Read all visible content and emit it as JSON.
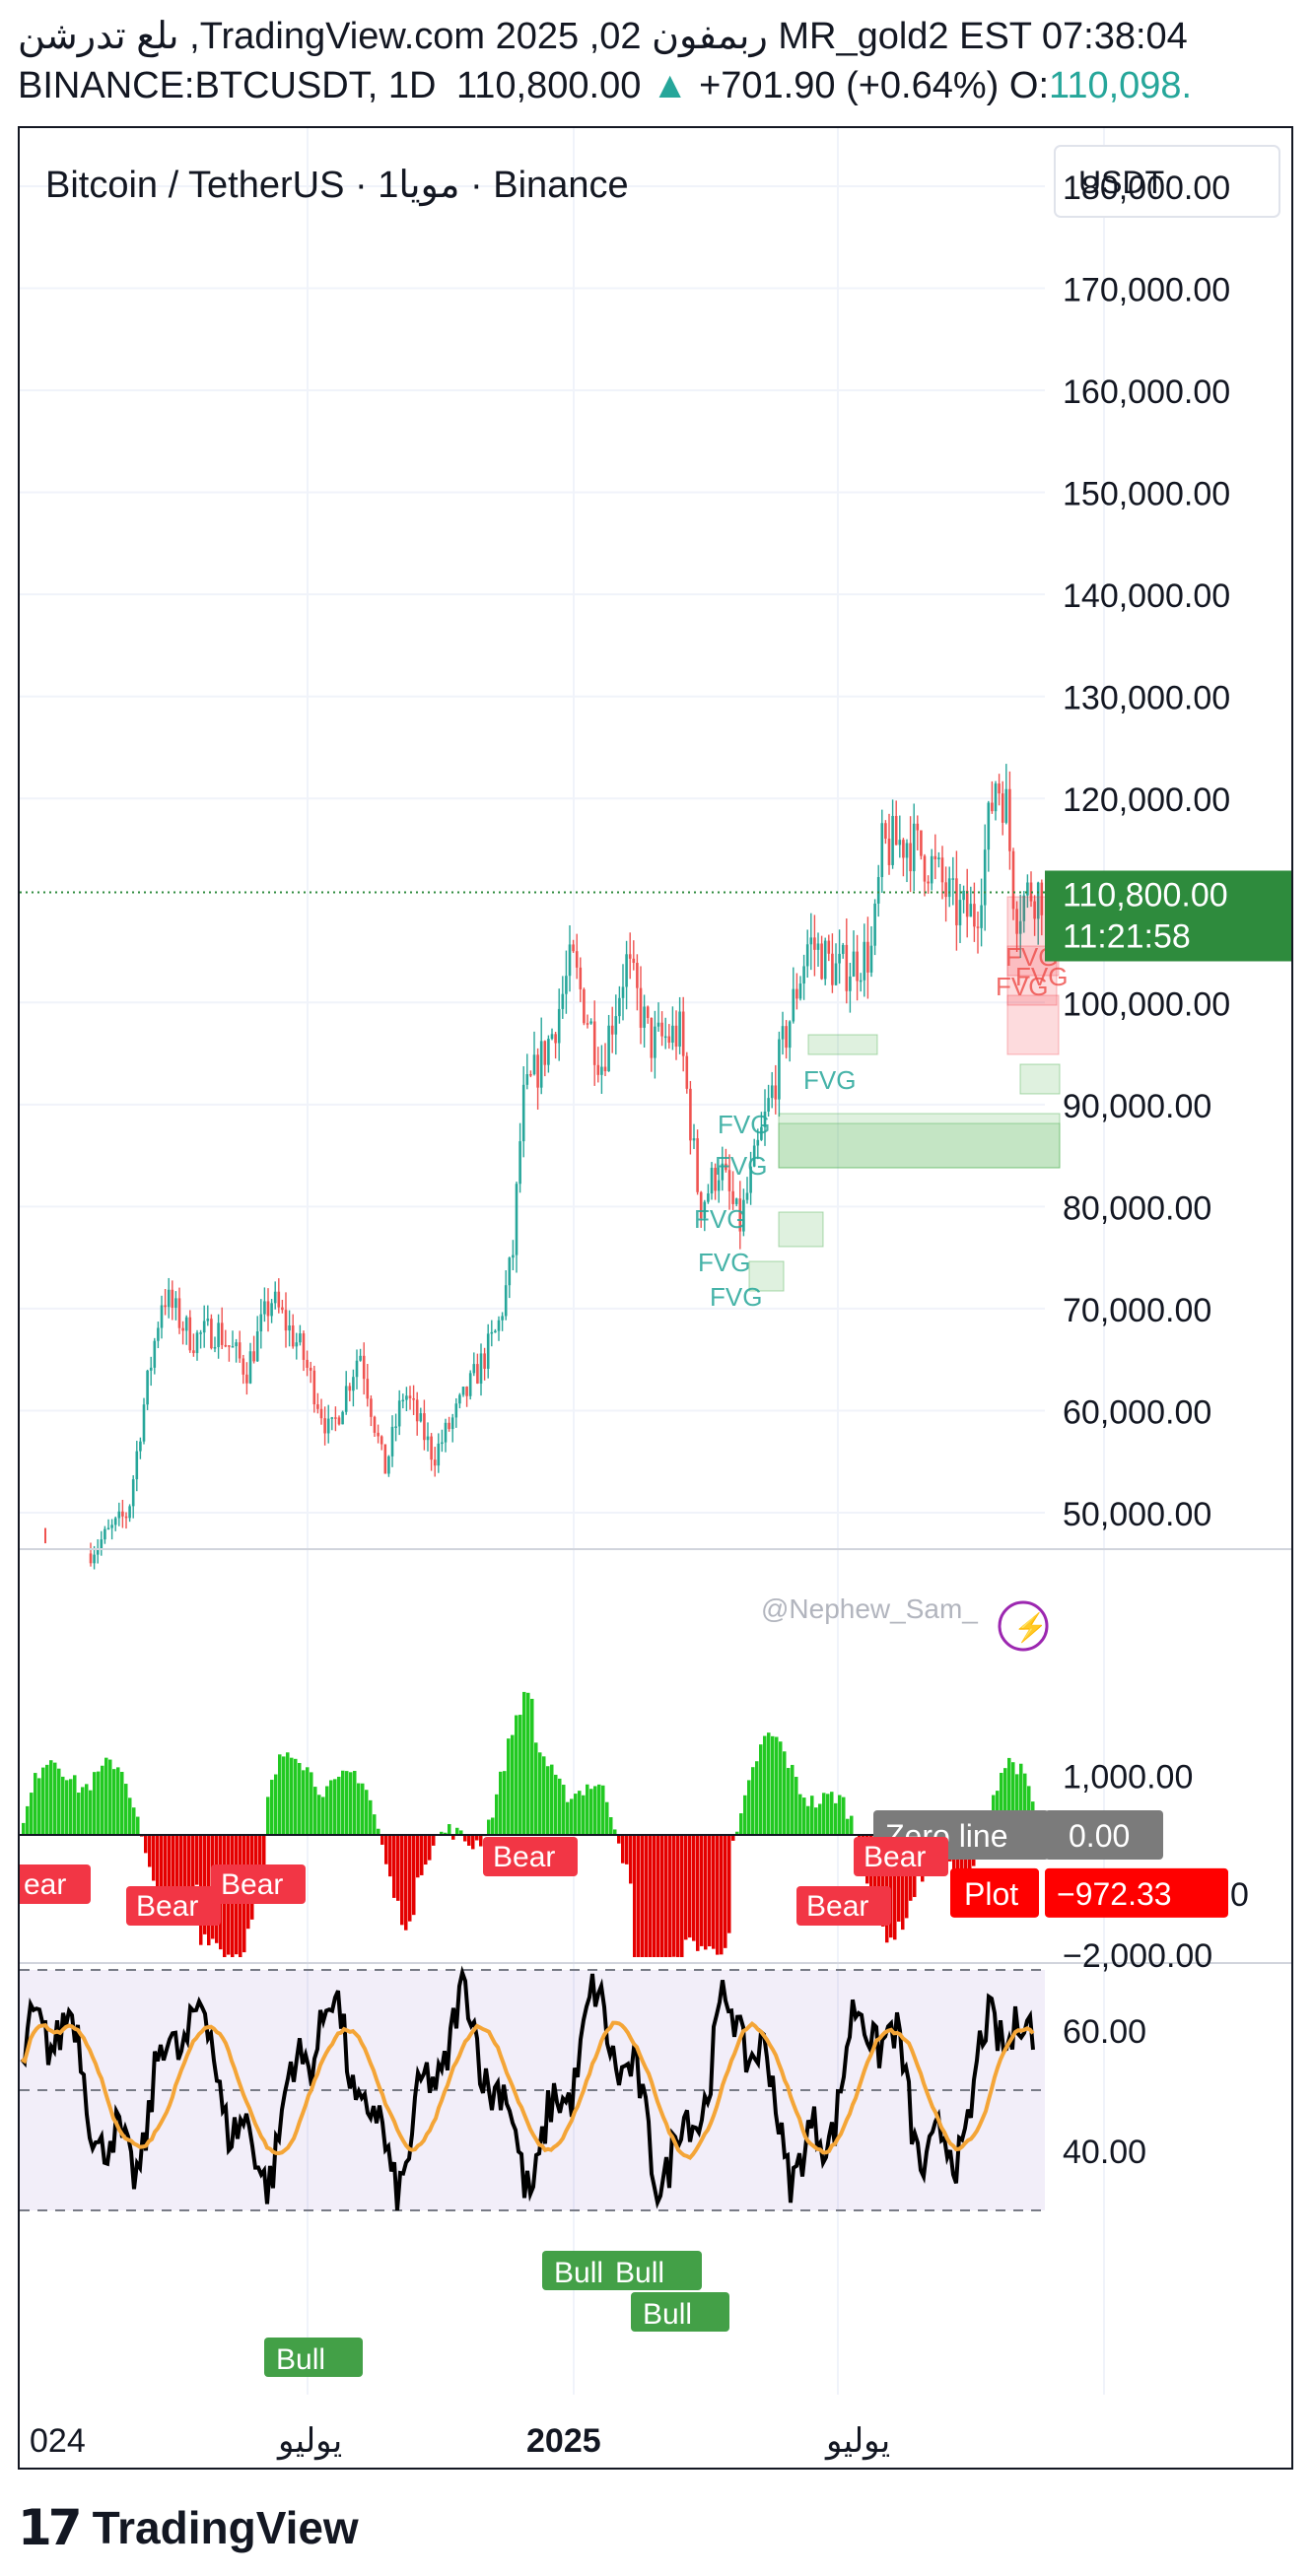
{
  "header": {
    "line1": "ىلع تدرشن ,TradingView.com ربمفون 02, 2025 MR_gold2 EST 07:38:04",
    "symbol": "BINANCE:BTCUSDT, 1D",
    "last": "110,800.00",
    "change": "+701.90 (+0.64%)",
    "open_label": "O:",
    "open_value": "110,098."
  },
  "chart_title": "Bitcoin / TetherUS · 1مويا · Binance",
  "currency_button": "USDT",
  "watermark": "@Nephew_Sam_",
  "colors": {
    "up": "#26a69a",
    "down": "#ef5350",
    "bull_green": "#22c922",
    "bear_red": "#e50000",
    "label_bear": "#f23645",
    "label_bull": "#43a047",
    "rsi_line": "#000000",
    "rsi_ma": "#f4a537",
    "price_tag": "#2e8b3d",
    "zero_tag": "#7b7b7b",
    "plot_tag": "#ff0000"
  },
  "price_tag": {
    "price": "110,800.00",
    "countdown": "11:21:58"
  },
  "zero_tag": {
    "label": "Zero line",
    "value": "0.00"
  },
  "plot_tag": {
    "label": "Plot",
    "value": "−972.33"
  },
  "osc_axis_stub": "0",
  "time_axis": [
    "024",
    "يوليو",
    "2025",
    "يوليو"
  ],
  "fvg_label": "FVG",
  "rsi_labels": {
    "bear": [
      "ear",
      "Bear",
      "Bear",
      "Bear",
      "Bear",
      "Bear"
    ],
    "bull": [
      "Bull",
      "Bull",
      "Bull",
      "Bull"
    ]
  },
  "footer_brand": {
    "mark": "17",
    "word": "TradingView"
  },
  "chart_data": [
    {
      "type": "candlestick",
      "title": "Bitcoin / TetherUS · 1مويا · Binance",
      "ylim": [
        48000,
        192000
      ],
      "ticks": [
        "180,000.00",
        "170,000.00",
        "160,000.00",
        "150,000.00",
        "140,000.00",
        "130,000.00",
        "120,000.00",
        "100,000.00",
        "90,000.00",
        "80,000.00",
        "70,000.00",
        "60,000.00",
        "50,000.00"
      ],
      "tick_values": [
        180000,
        170000,
        160000,
        150000,
        140000,
        130000,
        120000,
        100000,
        90000,
        80000,
        70000,
        60000,
        50000
      ],
      "x": [
        "2024-03",
        "2024-04",
        "2024-05",
        "2024-06",
        "2024-07",
        "2024-08",
        "2024-09",
        "2024-10",
        "2024-11",
        "2024-12",
        "2025-01",
        "2025-02",
        "2025-03",
        "2025-04",
        "2025-05",
        "2025-06",
        "2025-07",
        "2025-08",
        "2025-09",
        "2025-10",
        "2025-11"
      ],
      "close": [
        71000,
        63000,
        67500,
        62700,
        64600,
        59000,
        63300,
        70200,
        96400,
        93400,
        102400,
        84300,
        82500,
        94200,
        104600,
        107100,
        115700,
        108200,
        114000,
        112000,
        110800
      ],
      "last": 110800,
      "grid": true
    },
    {
      "type": "histogram",
      "ylim": [
        -2200,
        1900
      ],
      "ticks": [
        "1,000.00",
        "−2,000.00"
      ],
      "tick_values": [
        1000,
        -2000
      ],
      "zero_line": 0,
      "last": -972.33
    },
    {
      "type": "line",
      "ylim": [
        28,
        75
      ],
      "ticks": [
        "60.00",
        "40.00"
      ],
      "tick_values": [
        60,
        40
      ],
      "levels": [
        70,
        50,
        30
      ],
      "series": [
        {
          "values": []
        },
        {
          "values": []
        }
      ]
    }
  ]
}
